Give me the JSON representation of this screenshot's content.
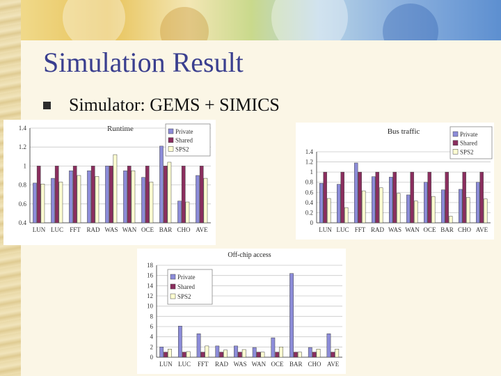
{
  "slide": {
    "title": "Simulation Result",
    "bullet": "Simulator: GEMS + SIMICS"
  },
  "colors": {
    "private": "#8c8cd9",
    "shared": "#8a2e5e",
    "sps2": "#ffffd2"
  },
  "chart_data": [
    {
      "type": "bar",
      "title": "Runtime",
      "categories": [
        "LUN",
        "LUC",
        "FFT",
        "RAD",
        "WAS",
        "WAN",
        "OCE",
        "BAR",
        "CHO",
        "AVE"
      ],
      "series": [
        {
          "name": "Private",
          "values": [
            0.82,
            0.87,
            0.95,
            0.95,
            1.0,
            0.95,
            0.88,
            1.21,
            0.63,
            0.9
          ]
        },
        {
          "name": "Shared",
          "values": [
            1.0,
            1.0,
            1.0,
            1.0,
            1.0,
            1.0,
            1.0,
            1.0,
            1.0,
            1.0
          ]
        },
        {
          "name": "SPS2",
          "values": [
            0.81,
            0.83,
            0.9,
            0.89,
            1.12,
            0.95,
            0.83,
            1.04,
            0.62,
            0.87
          ]
        }
      ],
      "ylim": [
        0.4,
        1.4
      ],
      "yticks": [
        "0.4",
        "0.6",
        "0.8",
        "1",
        "1.2",
        "1.4"
      ],
      "legend": "top-right"
    },
    {
      "type": "bar",
      "title": "Bus traffic",
      "categories": [
        "LUN",
        "LUC",
        "FFT",
        "RAD",
        "WAS",
        "WAN",
        "OCE",
        "BAR",
        "CHO",
        "AVE"
      ],
      "series": [
        {
          "name": "Private",
          "values": [
            0.78,
            0.76,
            1.18,
            0.91,
            0.9,
            0.55,
            0.8,
            0.65,
            0.66,
            0.8
          ]
        },
        {
          "name": "Shared",
          "values": [
            1.0,
            1.0,
            1.0,
            1.0,
            1.0,
            1.0,
            1.0,
            1.0,
            1.0,
            1.0
          ]
        },
        {
          "name": "SPS2",
          "values": [
            0.48,
            0.3,
            0.63,
            0.69,
            0.58,
            0.43,
            0.52,
            0.13,
            0.5,
            0.47
          ]
        }
      ],
      "ylim": [
        0,
        1.4
      ],
      "yticks": [
        "0",
        "0.2",
        "0.4",
        "0.6",
        "0.8",
        "1",
        "1.2",
        "1.4"
      ],
      "legend": "top-right"
    },
    {
      "type": "bar",
      "title": "Off-chip access",
      "categories": [
        "LUN",
        "LUC",
        "FFT",
        "RAD",
        "WAS",
        "WAN",
        "OCE",
        "BAR",
        "CHO",
        "AVE"
      ],
      "series": [
        {
          "name": "Private",
          "values": [
            2.0,
            6.1,
            4.6,
            2.2,
            2.2,
            1.9,
            3.8,
            16.4,
            1.9,
            4.6
          ]
        },
        {
          "name": "Shared",
          "values": [
            1.0,
            1.0,
            1.0,
            1.0,
            1.0,
            1.0,
            1.0,
            1.0,
            1.0,
            1.0
          ]
        },
        {
          "name": "SPS2",
          "values": [
            1.6,
            1.1,
            2.2,
            1.4,
            1.5,
            1.0,
            2.0,
            1.0,
            1.6,
            1.6
          ]
        }
      ],
      "ylim": [
        0,
        18
      ],
      "yticks": [
        "0",
        "2",
        "4",
        "6",
        "8",
        "10",
        "12",
        "14",
        "16",
        "18"
      ],
      "legend": "top-left"
    }
  ]
}
